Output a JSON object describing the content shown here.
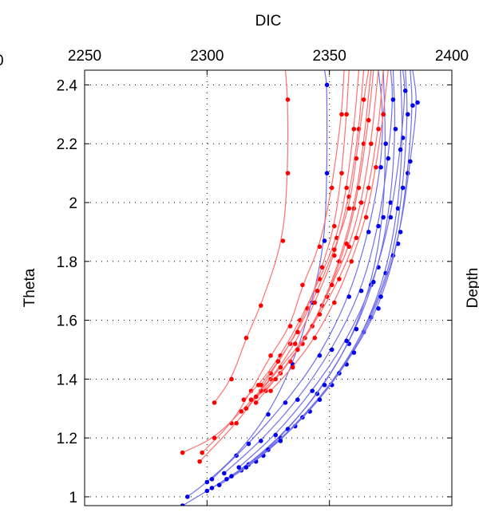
{
  "chart_data": {
    "type": "line",
    "title": "",
    "xlabel": "DIC",
    "ylabel": "Theta",
    "right_label_fragment": "Depth",
    "left_edge_tick_fragment": "0",
    "xlim": [
      2250,
      2400
    ],
    "ylim": [
      0.97,
      2.45
    ],
    "x_axis_position": "top",
    "grid": true,
    "grid_style": "dotted",
    "x_ticks": [
      2250,
      2300,
      2350,
      2400
    ],
    "x_tick_labels": [
      "2250",
      "2300",
      "2350",
      "2400"
    ],
    "y_ticks": [
      1,
      1.2,
      1.4,
      1.6,
      1.8,
      2,
      2.2,
      2.4
    ],
    "y_tick_labels": [
      "1",
      "1.2",
      "1.4",
      "1.6",
      "1.8",
      "2",
      "2.2",
      "2.4"
    ],
    "series_colors": {
      "red": "#ff0000",
      "blue": "#0000ee",
      "red_line": "#ff7070",
      "blue_line": "#7070ee"
    },
    "series": [
      {
        "group": "red",
        "points": [
          [
            2332,
            2.45
          ],
          [
            2333,
            2.35
          ],
          [
            2333,
            2.1
          ],
          [
            2331,
            1.87
          ],
          [
            2322,
            1.65
          ],
          [
            2316,
            1.54
          ],
          [
            2310,
            1.4
          ],
          [
            2303,
            1.32
          ]
        ]
      },
      {
        "group": "red",
        "points": [
          [
            2356,
            2.45
          ],
          [
            2355,
            2.3
          ],
          [
            2351,
            2.05
          ],
          [
            2346,
            1.85
          ],
          [
            2339,
            1.72
          ],
          [
            2334,
            1.58
          ],
          [
            2326,
            1.48
          ],
          [
            2318,
            1.36
          ],
          [
            2310,
            1.25
          ],
          [
            2298,
            1.15
          ]
        ]
      },
      {
        "group": "red",
        "points": [
          [
            2364,
            2.45
          ],
          [
            2362,
            2.25
          ],
          [
            2358,
            2.02
          ],
          [
            2352,
            1.82
          ],
          [
            2344,
            1.66
          ],
          [
            2336,
            1.52
          ],
          [
            2326,
            1.4
          ],
          [
            2314,
            1.29
          ],
          [
            2303,
            1.2
          ],
          [
            2290,
            1.15
          ]
        ]
      },
      {
        "group": "red",
        "points": [
          [
            2367,
            2.45
          ],
          [
            2364,
            2.2
          ],
          [
            2360,
            1.98
          ],
          [
            2354,
            1.8
          ],
          [
            2347,
            1.65
          ],
          [
            2339,
            1.52
          ],
          [
            2330,
            1.42
          ],
          [
            2320,
            1.34
          ],
          [
            2312,
            1.25
          ],
          [
            2297,
            1.12
          ]
        ]
      },
      {
        "group": "red",
        "points": [
          [
            2368,
            2.45
          ],
          [
            2366,
            2.28
          ],
          [
            2362,
            2.05
          ],
          [
            2357,
            1.86
          ],
          [
            2349,
            1.68
          ],
          [
            2340,
            1.54
          ],
          [
            2330,
            1.44
          ],
          [
            2322,
            1.36
          ],
          [
            2316,
            1.3
          ]
        ]
      },
      {
        "group": "red",
        "points": [
          [
            2370,
            2.45
          ],
          [
            2367,
            2.2
          ],
          [
            2363,
            2.0
          ],
          [
            2358,
            1.85
          ],
          [
            2351,
            1.72
          ],
          [
            2343,
            1.58
          ],
          [
            2334,
            1.46
          ],
          [
            2324,
            1.36
          ],
          [
            2318,
            1.33
          ]
        ]
      },
      {
        "group": "red",
        "points": [
          [
            2362,
            2.45
          ],
          [
            2360,
            2.25
          ],
          [
            2357,
            2.05
          ],
          [
            2353,
            1.88
          ],
          [
            2346,
            1.74
          ],
          [
            2338,
            1.6
          ],
          [
            2330,
            1.48
          ],
          [
            2321,
            1.38
          ],
          [
            2315,
            1.33
          ]
        ]
      },
      {
        "group": "red",
        "points": [
          [
            2358,
            2.45
          ],
          [
            2357,
            2.3
          ],
          [
            2355,
            2.1
          ],
          [
            2352,
            1.92
          ],
          [
            2347,
            1.78
          ],
          [
            2341,
            1.64
          ],
          [
            2334,
            1.52
          ],
          [
            2326,
            1.42
          ],
          [
            2320,
            1.34
          ]
        ]
      },
      {
        "group": "red",
        "points": [
          [
            2372,
            2.45
          ],
          [
            2370,
            2.25
          ],
          [
            2366,
            2.05
          ],
          [
            2361,
            1.88
          ],
          [
            2354,
            1.74
          ],
          [
            2346,
            1.62
          ],
          [
            2337,
            1.5
          ],
          [
            2328,
            1.4
          ],
          [
            2320,
            1.32
          ]
        ]
      },
      {
        "group": "red",
        "points": [
          [
            2366,
            2.45
          ],
          [
            2364,
            2.35
          ],
          [
            2361,
            2.15
          ],
          [
            2358,
            1.98
          ],
          [
            2352,
            1.84
          ],
          [
            2345,
            1.7
          ],
          [
            2337,
            1.56
          ],
          [
            2329,
            1.46
          ],
          [
            2322,
            1.38
          ]
        ]
      },
      {
        "group": "red",
        "points": [
          [
            2374,
            2.45
          ],
          [
            2372,
            2.3
          ],
          [
            2369,
            2.12
          ],
          [
            2365,
            1.95
          ],
          [
            2359,
            1.8
          ],
          [
            2352,
            1.66
          ],
          [
            2344,
            1.54
          ],
          [
            2335,
            1.44
          ],
          [
            2326,
            1.36
          ]
        ]
      },
      {
        "group": "blue",
        "points": [
          [
            2348,
            2.45
          ],
          [
            2349,
            2.4
          ],
          [
            2349,
            2.1
          ],
          [
            2348,
            1.87
          ],
          [
            2343,
            1.66
          ],
          [
            2335,
            1.45
          ],
          [
            2325,
            1.28
          ],
          [
            2312,
            1.14
          ],
          [
            2300,
            1.05
          ],
          [
            2292,
            1.0
          ]
        ]
      },
      {
        "group": "blue",
        "points": [
          [
            2372,
            2.45
          ],
          [
            2373,
            2.2
          ],
          [
            2372,
            1.95
          ],
          [
            2367,
            1.72
          ],
          [
            2358,
            1.52
          ],
          [
            2345,
            1.35
          ],
          [
            2330,
            1.2
          ],
          [
            2314,
            1.09
          ],
          [
            2300,
            1.02
          ],
          [
            2290,
            0.97
          ]
        ]
      },
      {
        "group": "blue",
        "points": [
          [
            2376,
            2.45
          ],
          [
            2377,
            2.25
          ],
          [
            2375,
            2.0
          ],
          [
            2370,
            1.78
          ],
          [
            2361,
            1.57
          ],
          [
            2348,
            1.38
          ],
          [
            2333,
            1.23
          ],
          [
            2317,
            1.11
          ],
          [
            2302,
            1.03
          ]
        ]
      },
      {
        "group": "blue",
        "points": [
          [
            2379,
            2.45
          ],
          [
            2380,
            2.22
          ],
          [
            2378,
            1.98
          ],
          [
            2373,
            1.76
          ],
          [
            2364,
            1.56
          ],
          [
            2351,
            1.38
          ],
          [
            2336,
            1.24
          ],
          [
            2320,
            1.12
          ],
          [
            2305,
            1.04
          ]
        ]
      },
      {
        "group": "blue",
        "points": [
          [
            2381,
            2.45
          ],
          [
            2382,
            2.3
          ],
          [
            2380,
            2.05
          ],
          [
            2376,
            1.82
          ],
          [
            2367,
            1.61
          ],
          [
            2354,
            1.42
          ],
          [
            2339,
            1.27
          ],
          [
            2323,
            1.14
          ],
          [
            2308,
            1.06
          ]
        ]
      },
      {
        "group": "blue",
        "points": [
          [
            2383,
            2.45
          ],
          [
            2384,
            2.33
          ],
          [
            2382,
            2.1
          ],
          [
            2378,
            1.86
          ],
          [
            2370,
            1.64
          ],
          [
            2357,
            1.45
          ],
          [
            2342,
            1.29
          ],
          [
            2325,
            1.16
          ],
          [
            2310,
            1.07
          ]
        ]
      },
      {
        "group": "blue",
        "points": [
          [
            2375,
            2.45
          ],
          [
            2376,
            2.35
          ],
          [
            2374,
            2.15
          ],
          [
            2370,
            1.92
          ],
          [
            2363,
            1.7
          ],
          [
            2351,
            1.5
          ],
          [
            2337,
            1.33
          ],
          [
            2322,
            1.19
          ],
          [
            2307,
            1.08
          ]
        ]
      },
      {
        "group": "blue",
        "points": [
          [
            2370,
            2.45
          ],
          [
            2372,
            2.3
          ],
          [
            2371,
            2.12
          ],
          [
            2366,
            1.9
          ],
          [
            2358,
            1.68
          ],
          [
            2346,
            1.48
          ],
          [
            2332,
            1.32
          ],
          [
            2317,
            1.18
          ],
          [
            2302,
            1.06
          ]
        ]
      },
      {
        "group": "blue",
        "points": [
          [
            2380,
            2.45
          ],
          [
            2381,
            2.38
          ],
          [
            2379,
            2.18
          ],
          [
            2375,
            1.95
          ],
          [
            2368,
            1.73
          ],
          [
            2357,
            1.53
          ],
          [
            2343,
            1.36
          ],
          [
            2328,
            1.21
          ],
          [
            2313,
            1.1
          ]
        ]
      },
      {
        "group": "blue",
        "points": [
          [
            2384,
            2.45
          ],
          [
            2386,
            2.34
          ],
          [
            2383,
            2.14
          ],
          [
            2379,
            1.9
          ],
          [
            2371,
            1.68
          ],
          [
            2360,
            1.49
          ],
          [
            2346,
            1.33
          ],
          [
            2330,
            1.19
          ],
          [
            2316,
            1.1
          ]
        ]
      }
    ]
  }
}
